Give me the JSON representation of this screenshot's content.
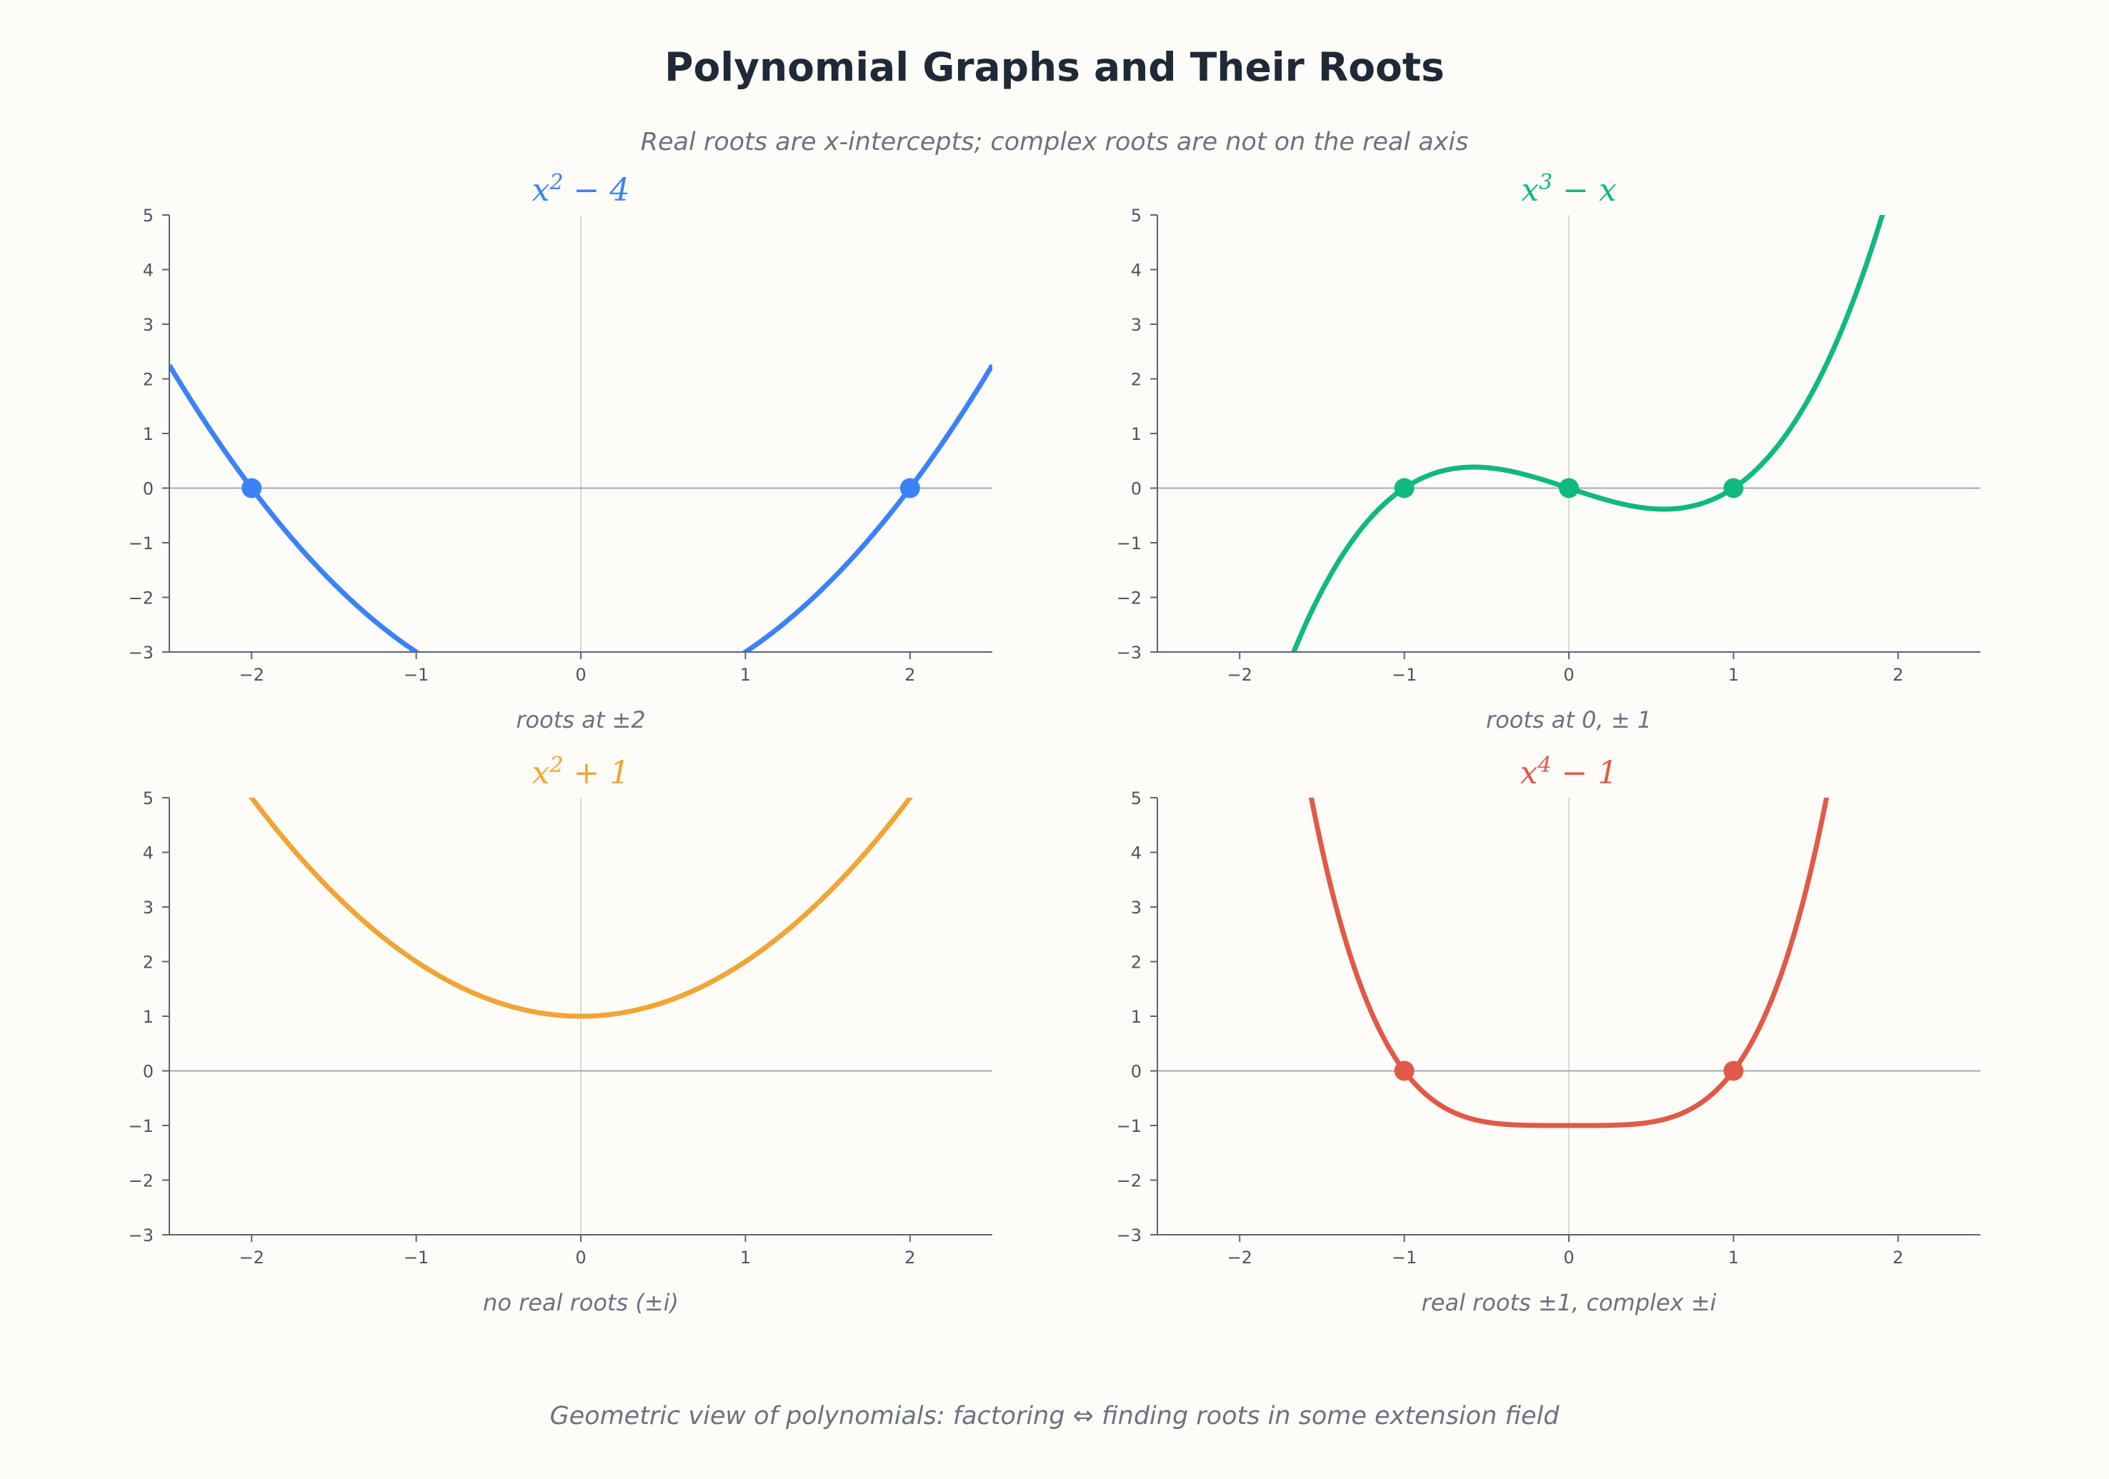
{
  "title": "Polynomial Graphs and Their Roots",
  "subtitle": "Real roots are x-intercepts; complex roots are not on the real axis",
  "footer": "Geometric view of polynomials: factoring ⇔ finding roots in some extension field",
  "chart_data": [
    {
      "type": "line",
      "title_base": "x",
      "title_exp": "2",
      "title_rest": " − 4",
      "caption": "roots at ±2",
      "color": "#3b82f6",
      "coefficients": [
        -4,
        0,
        1
      ],
      "roots": [
        -2,
        2
      ],
      "xlim": [
        -2.5,
        2.5
      ],
      "ylim": [
        -3,
        5
      ],
      "xticks": [
        -2,
        -1,
        0,
        1,
        2
      ],
      "yticks": [
        -3,
        -2,
        -1,
        0,
        1,
        2,
        3,
        4,
        5
      ],
      "xtick_labels": [
        "−2",
        "−1",
        "0",
        "1",
        "2"
      ],
      "ytick_labels": [
        "−3",
        "−2",
        "−1",
        "0",
        "1",
        "2",
        "3",
        "4",
        "5"
      ]
    },
    {
      "type": "line",
      "title_base": "x",
      "title_exp": "3",
      "title_rest": " − x",
      "caption": "roots at 0, ± 1",
      "color": "#10b981",
      "coefficients": [
        0,
        -1,
        0,
        1
      ],
      "roots": [
        -1,
        0,
        1
      ],
      "xlim": [
        -2.5,
        2.5
      ],
      "ylim": [
        -3,
        5
      ],
      "xticks": [
        -2,
        -1,
        0,
        1,
        2
      ],
      "yticks": [
        -3,
        -2,
        -1,
        0,
        1,
        2,
        3,
        4,
        5
      ],
      "xtick_labels": [
        "−2",
        "−1",
        "0",
        "1",
        "2"
      ],
      "ytick_labels": [
        "−3",
        "−2",
        "−1",
        "0",
        "1",
        "2",
        "3",
        "4",
        "5"
      ]
    },
    {
      "type": "line",
      "title_base": "x",
      "title_exp": "2",
      "title_rest": " + 1",
      "caption": "no real roots (±i)",
      "color": "#f0a535",
      "coefficients": [
        1,
        0,
        1
      ],
      "roots": [],
      "xlim": [
        -2.5,
        2.5
      ],
      "ylim": [
        -3,
        5
      ],
      "xticks": [
        -2,
        -1,
        0,
        1,
        2
      ],
      "yticks": [
        -3,
        -2,
        -1,
        0,
        1,
        2,
        3,
        4,
        5
      ],
      "xtick_labels": [
        "−2",
        "−1",
        "0",
        "1",
        "2"
      ],
      "ytick_labels": [
        "−3",
        "−2",
        "−1",
        "0",
        "1",
        "2",
        "3",
        "4",
        "5"
      ]
    },
    {
      "type": "line",
      "title_base": "x",
      "title_exp": "4",
      "title_rest": " − 1",
      "caption": "real roots ±1, complex ±i",
      "color": "#e05a47",
      "coefficients": [
        -1,
        0,
        0,
        0,
        1
      ],
      "roots": [
        -1,
        1
      ],
      "xlim": [
        -2.5,
        2.5
      ],
      "ylim": [
        -3,
        5
      ],
      "xticks": [
        -2,
        -1,
        0,
        1,
        2
      ],
      "yticks": [
        -3,
        -2,
        -1,
        0,
        1,
        2,
        3,
        4,
        5
      ],
      "xtick_labels": [
        "−2",
        "−1",
        "0",
        "1",
        "2"
      ],
      "ytick_labels": [
        "−3",
        "−2",
        "−1",
        "0",
        "1",
        "2",
        "3",
        "4",
        "5"
      ]
    }
  ]
}
